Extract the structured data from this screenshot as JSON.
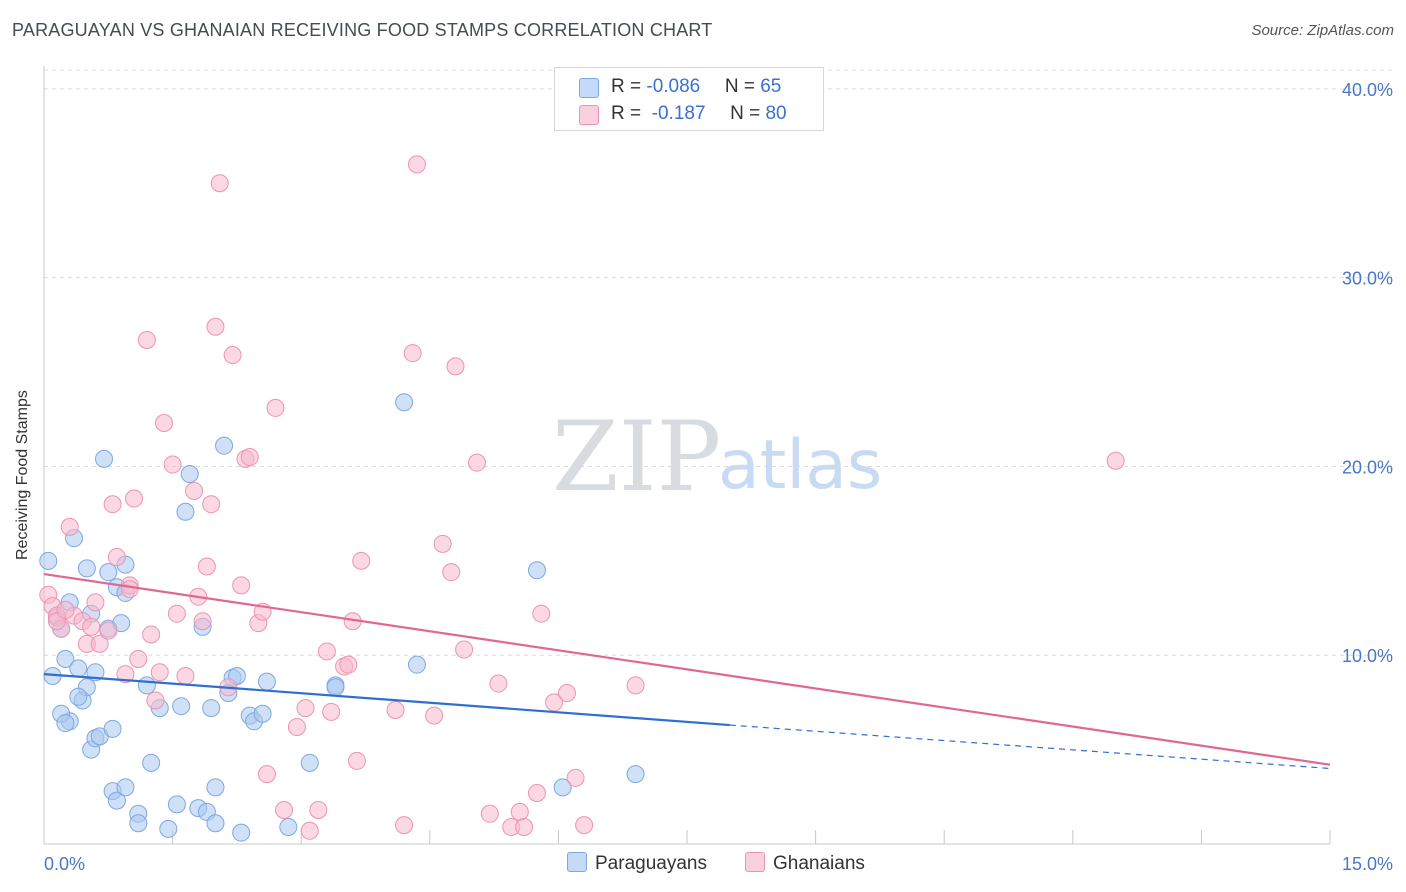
{
  "header": {
    "title": "PARAGUAYAN VS GHANAIAN RECEIVING FOOD STAMPS CORRELATION CHART",
    "source": "Source: ZipAtlas.com"
  },
  "watermark": {
    "zip": "ZIP",
    "atlas": "atlas"
  },
  "legend": {
    "rows": [
      {
        "r_label": "R = ",
        "r_value": "-0.086",
        "n_label": "N = ",
        "n_value": "65",
        "color": "#a9c8f0"
      },
      {
        "r_label": "R = ",
        "r_value": " -0.187",
        "n_label": "N = ",
        "n_value": "80",
        "color": "#f7b8cc"
      }
    ]
  },
  "bottom_legend": [
    {
      "label": "Paraguayans",
      "color": "#a9c8f0"
    },
    {
      "label": "Ghanaians",
      "color": "#f7b8cc"
    }
  ],
  "chart_data": {
    "type": "scatter",
    "title": "PARAGUAYAN VS GHANAIAN RECEIVING FOOD STAMPS CORRELATION CHART",
    "xlabel": "",
    "ylabel": "Receiving Food Stamps",
    "xlim": [
      0,
      15
    ],
    "ylim": [
      0,
      41
    ],
    "x_tick_labels": [
      "0.0%",
      "15.0%"
    ],
    "y_ticks": [
      10,
      20,
      30,
      40
    ],
    "y_tick_labels": [
      "10.0%",
      "20.0%",
      "30.0%",
      "40.0%"
    ],
    "grid": true,
    "legend_position": "top-center",
    "series": [
      {
        "name": "Paraguayans",
        "color": "#a9c8f0",
        "stroke": "#7ea8e0",
        "trend_color": "#2f6fd0",
        "trend": {
          "x0": 0.0,
          "y0": 9.0,
          "x1": 8.0,
          "y1": 6.3,
          "dash_to_x": 15.0,
          "dash_to_y": 4.0
        },
        "points": [
          [
            0.05,
            15.0
          ],
          [
            0.1,
            8.9
          ],
          [
            0.15,
            12.0
          ],
          [
            0.2,
            11.4
          ],
          [
            0.25,
            9.8
          ],
          [
            0.3,
            6.5
          ],
          [
            0.35,
            16.2
          ],
          [
            0.4,
            9.3
          ],
          [
            0.45,
            7.6
          ],
          [
            0.5,
            14.6
          ],
          [
            0.5,
            8.3
          ],
          [
            0.55,
            5.0
          ],
          [
            0.6,
            5.6
          ],
          [
            0.65,
            5.7
          ],
          [
            0.7,
            20.4
          ],
          [
            0.75,
            14.4
          ],
          [
            0.75,
            11.4
          ],
          [
            0.8,
            6.1
          ],
          [
            0.85,
            13.6
          ],
          [
            0.9,
            11.7
          ],
          [
            0.95,
            13.3
          ],
          [
            0.95,
            14.8
          ],
          [
            0.8,
            2.8
          ],
          [
            0.85,
            2.3
          ],
          [
            0.95,
            3.0
          ],
          [
            1.1,
            1.6
          ],
          [
            1.1,
            1.1
          ],
          [
            1.2,
            8.4
          ],
          [
            1.25,
            4.3
          ],
          [
            1.35,
            7.2
          ],
          [
            1.45,
            0.8
          ],
          [
            1.55,
            2.1
          ],
          [
            1.6,
            7.3
          ],
          [
            1.65,
            17.6
          ],
          [
            1.7,
            19.6
          ],
          [
            1.8,
            1.9
          ],
          [
            1.85,
            11.5
          ],
          [
            1.9,
            1.7
          ],
          [
            1.95,
            7.2
          ],
          [
            2.0,
            3.0
          ],
          [
            2.0,
            1.1
          ],
          [
            2.1,
            21.1
          ],
          [
            2.15,
            8.0
          ],
          [
            2.2,
            8.8
          ],
          [
            2.25,
            8.9
          ],
          [
            2.3,
            0.6
          ],
          [
            2.4,
            6.8
          ],
          [
            2.45,
            6.5
          ],
          [
            2.55,
            6.9
          ],
          [
            2.6,
            8.6
          ],
          [
            2.85,
            0.9
          ],
          [
            3.1,
            4.3
          ],
          [
            3.4,
            8.4
          ],
          [
            3.4,
            8.3
          ],
          [
            4.2,
            23.4
          ],
          [
            4.35,
            9.5
          ],
          [
            5.75,
            14.5
          ],
          [
            6.05,
            3.0
          ],
          [
            6.9,
            3.7
          ],
          [
            0.2,
            6.9
          ],
          [
            0.4,
            7.8
          ],
          [
            0.6,
            9.1
          ],
          [
            0.3,
            12.8
          ],
          [
            0.55,
            12.2
          ],
          [
            0.25,
            6.4
          ]
        ]
      },
      {
        "name": "Ghanaians",
        "color": "#f7b8cc",
        "stroke": "#ec94b2",
        "trend_color": "#e0688f",
        "trend": {
          "x0": 0.0,
          "y0": 14.3,
          "x1": 15.0,
          "y1": 4.2
        },
        "points": [
          [
            0.05,
            13.2
          ],
          [
            0.1,
            12.6
          ],
          [
            0.15,
            12.1
          ],
          [
            0.2,
            11.4
          ],
          [
            0.3,
            16.8
          ],
          [
            0.35,
            12.1
          ],
          [
            0.45,
            11.8
          ],
          [
            0.5,
            10.6
          ],
          [
            0.6,
            12.8
          ],
          [
            0.65,
            10.6
          ],
          [
            0.75,
            11.3
          ],
          [
            0.8,
            18.0
          ],
          [
            0.85,
            15.2
          ],
          [
            0.95,
            9.0
          ],
          [
            1.0,
            13.7
          ],
          [
            1.05,
            18.3
          ],
          [
            1.1,
            9.8
          ],
          [
            1.2,
            26.7
          ],
          [
            1.25,
            11.1
          ],
          [
            1.35,
            9.1
          ],
          [
            1.4,
            22.3
          ],
          [
            1.5,
            20.1
          ],
          [
            1.55,
            12.2
          ],
          [
            1.65,
            8.9
          ],
          [
            1.75,
            18.7
          ],
          [
            1.8,
            13.1
          ],
          [
            1.85,
            11.8
          ],
          [
            1.9,
            14.7
          ],
          [
            1.95,
            18.0
          ],
          [
            2.0,
            27.4
          ],
          [
            2.05,
            35.0
          ],
          [
            2.15,
            8.3
          ],
          [
            2.2,
            25.9
          ],
          [
            2.3,
            13.7
          ],
          [
            2.35,
            20.4
          ],
          [
            2.4,
            20.5
          ],
          [
            2.5,
            11.7
          ],
          [
            2.55,
            12.3
          ],
          [
            2.6,
            3.7
          ],
          [
            2.7,
            23.1
          ],
          [
            2.8,
            1.8
          ],
          [
            2.95,
            6.2
          ],
          [
            3.05,
            7.2
          ],
          [
            3.1,
            0.7
          ],
          [
            3.2,
            1.8
          ],
          [
            3.3,
            10.2
          ],
          [
            3.35,
            7.0
          ],
          [
            3.5,
            9.4
          ],
          [
            3.55,
            9.5
          ],
          [
            3.6,
            11.8
          ],
          [
            3.65,
            4.4
          ],
          [
            3.7,
            15.0
          ],
          [
            4.1,
            7.1
          ],
          [
            4.2,
            1.0
          ],
          [
            4.3,
            26.0
          ],
          [
            4.35,
            36.0
          ],
          [
            4.55,
            6.8
          ],
          [
            4.65,
            15.9
          ],
          [
            4.75,
            14.4
          ],
          [
            4.8,
            25.3
          ],
          [
            4.9,
            10.3
          ],
          [
            5.05,
            20.2
          ],
          [
            5.2,
            1.6
          ],
          [
            5.3,
            8.5
          ],
          [
            5.45,
            0.9
          ],
          [
            5.55,
            1.7
          ],
          [
            5.6,
            0.9
          ],
          [
            5.75,
            2.7
          ],
          [
            5.8,
            12.2
          ],
          [
            5.95,
            7.5
          ],
          [
            6.1,
            8.0
          ],
          [
            6.2,
            3.5
          ],
          [
            6.3,
            1.0
          ],
          [
            6.9,
            8.4
          ],
          [
            12.5,
            20.3
          ],
          [
            0.15,
            11.8
          ],
          [
            0.25,
            12.4
          ],
          [
            0.55,
            11.5
          ],
          [
            1.0,
            13.5
          ],
          [
            1.3,
            7.6
          ]
        ]
      }
    ]
  }
}
